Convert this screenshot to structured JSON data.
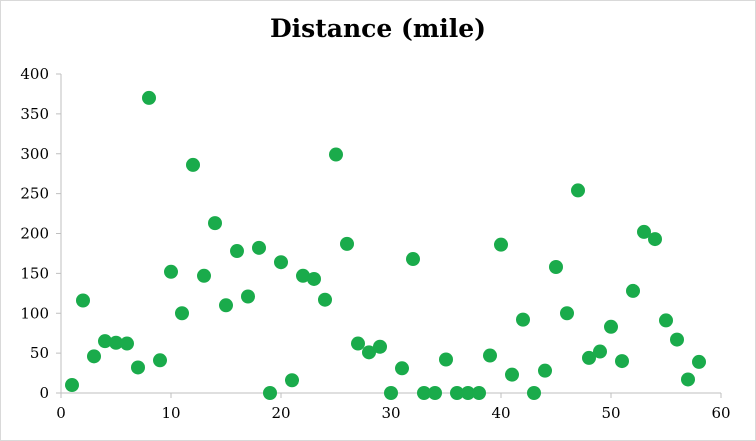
{
  "chart_data": {
    "type": "scatter",
    "title": "Distance (mile)",
    "xlabel": "",
    "ylabel": "",
    "xlim": [
      0,
      60
    ],
    "ylim": [
      0,
      400
    ],
    "xticks": [
      0,
      10,
      20,
      30,
      40,
      50,
      60
    ],
    "yticks": [
      0,
      50,
      100,
      150,
      200,
      250,
      300,
      350,
      400
    ],
    "grid": false,
    "legend": "none",
    "marker_color": "#1aab4b",
    "x": [
      1,
      2,
      3,
      4,
      5,
      6,
      7,
      8,
      9,
      10,
      11,
      12,
      13,
      14,
      15,
      16,
      17,
      18,
      19,
      20,
      21,
      22,
      23,
      24,
      25,
      26,
      27,
      28,
      29,
      30,
      31,
      32,
      33,
      34,
      35,
      36,
      37,
      38,
      39,
      40,
      41,
      42,
      43,
      44,
      45,
      46,
      47,
      48,
      49,
      50,
      51,
      52,
      53,
      54,
      55,
      56,
      57,
      58
    ],
    "y": [
      10,
      116,
      46,
      65,
      63,
      62,
      32,
      370,
      41,
      152,
      100,
      286,
      147,
      213,
      110,
      178,
      121,
      182,
      0,
      164,
      16,
      147,
      143,
      117,
      299,
      187,
      62,
      51,
      58,
      0,
      31,
      168,
      0,
      0,
      42,
      0,
      0,
      0,
      47,
      186,
      23,
      92,
      0,
      28,
      158,
      100,
      254,
      44,
      52,
      83,
      40,
      128,
      202,
      193,
      91,
      67,
      17,
      39
    ]
  }
}
